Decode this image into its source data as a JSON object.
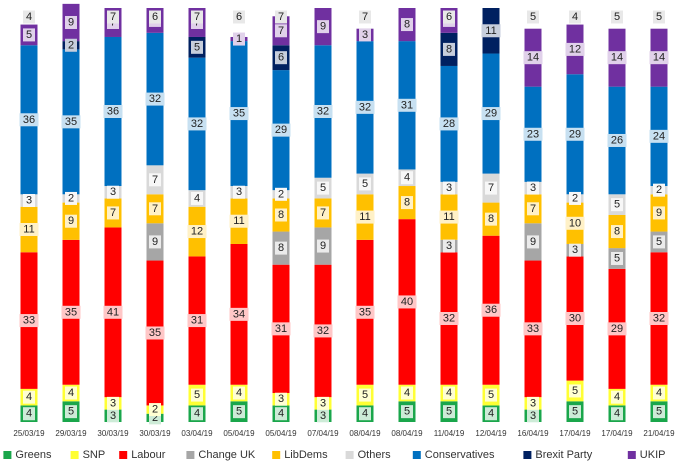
{
  "chart_data": {
    "type": "bar",
    "stacked": true,
    "grid": false,
    "legend_position": "bottom",
    "categories": [
      "25/03/19",
      "29/03/19",
      "30/03/19",
      "30/03/19",
      "03/04/19",
      "05/04/19",
      "05/04/19",
      "07/04/19",
      "08/04/19",
      "08/04/19",
      "11/04/19",
      "12/04/19",
      "16/04/19",
      "17/04/19",
      "17/04/19",
      "21/04/19"
    ],
    "series": [
      {
        "name": "Greens",
        "color": "#1aa64b",
        "values": [
          4,
          5,
          3,
          2,
          4,
          5,
          4,
          3,
          4,
          5,
          5,
          4,
          3,
          5,
          4,
          5
        ]
      },
      {
        "name": "SNP",
        "color": "#ffff33",
        "values": [
          4,
          4,
          3,
          2,
          5,
          4,
          3,
          3,
          5,
          4,
          4,
          5,
          3,
          5,
          4,
          4
        ]
      },
      {
        "name": "Labour",
        "color": "#ff0000",
        "values": [
          33,
          35,
          41,
          35,
          31,
          34,
          31,
          32,
          35,
          40,
          32,
          36,
          33,
          30,
          29,
          32
        ]
      },
      {
        "name": "Change UK",
        "color": "#a6a6a6",
        "values": [
          0,
          0,
          0,
          9,
          0,
          0,
          8,
          9,
          0,
          0,
          3,
          0,
          9,
          3,
          5,
          5
        ]
      },
      {
        "name": "LibDems",
        "color": "#ffc000",
        "values": [
          11,
          9,
          7,
          7,
          12,
          11,
          8,
          7,
          11,
          8,
          11,
          8,
          7,
          10,
          8,
          9
        ]
      },
      {
        "name": "Others",
        "color": "#d9d9d9",
        "values": [
          3,
          2,
          3,
          7,
          4,
          3,
          2,
          5,
          5,
          4,
          3,
          7,
          3,
          2,
          5,
          2
        ]
      },
      {
        "name": "Conservatives",
        "color": "#0070c0",
        "values": [
          36,
          35,
          36,
          32,
          32,
          35,
          29,
          32,
          32,
          31,
          28,
          29,
          23,
          29,
          26,
          24
        ]
      },
      {
        "name": "Brexit Party",
        "color": "#002060",
        "values": [
          0,
          2,
          0,
          0,
          5,
          0,
          6,
          0,
          0,
          0,
          8,
          11,
          0,
          0,
          0,
          0
        ]
      },
      {
        "name": "UKIP",
        "color": "#7030a0",
        "values": [
          5,
          9,
          7,
          6,
          7,
          1,
          7,
          9,
          3,
          8,
          6,
          0,
          14,
          12,
          14,
          14
        ]
      }
    ],
    "label_overrides": [
      {
        "series": "Brexit Party",
        "category_index": 1,
        "text": "2"
      },
      {
        "series": "UKIP",
        "category_index": 1,
        "text": "9"
      }
    ],
    "extra_labels": [
      {
        "category_index": 0,
        "text": "4"
      },
      {
        "category_index": 2,
        "text": "7"
      },
      {
        "category_index": 3,
        "text": "6"
      },
      {
        "category_index": 4,
        "text": "7"
      },
      {
        "category_index": 5,
        "text": "6"
      },
      {
        "category_index": 6,
        "text": "7"
      },
      {
        "category_index": 8,
        "text": "7"
      },
      {
        "category_index": 10,
        "text": "6"
      },
      {
        "category_index": 12,
        "text": "5"
      },
      {
        "category_index": 13,
        "text": "4"
      },
      {
        "category_index": 14,
        "text": "5"
      },
      {
        "category_index": 15,
        "text": "5"
      }
    ],
    "title": "",
    "xlabel": "",
    "ylabel": "",
    "ylim": [
      0,
      100
    ]
  }
}
